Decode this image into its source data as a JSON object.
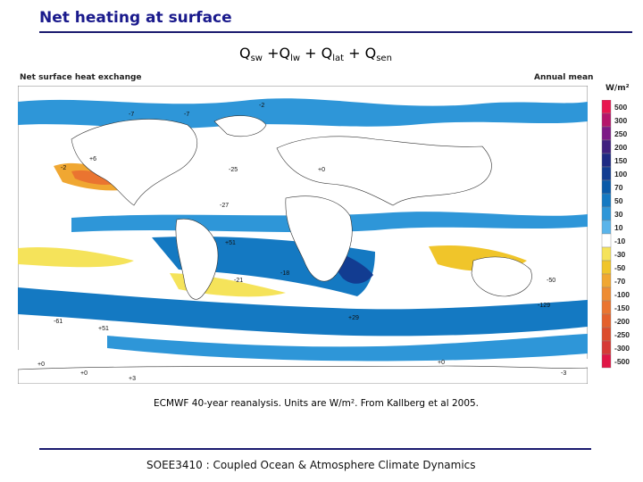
{
  "slide": {
    "title": "Net heating at surface",
    "equation": {
      "q1": "Q",
      "s1": "sw",
      "op1": " +",
      "q2": "Q",
      "s2": "lw",
      "op2": " + ",
      "q3": "Q",
      "s3": "lat",
      "op3": " + ",
      "q4": "Q",
      "s4": "sen"
    },
    "caption": "ECMWF 40-year reanalysis. Units are W/m². From Kallberg et al 2005.",
    "footer": "SOEE3410 : Coupled Ocean & Atmosphere Climate Dynamics"
  },
  "map": {
    "heading_left": "Net surface heat exchange",
    "heading_right": "Annual mean",
    "legend_unit": "W/m²",
    "legend": [
      {
        "label": "500",
        "color": "#e8164f"
      },
      {
        "label": "300",
        "color": "#b5166b"
      },
      {
        "label": "250",
        "color": "#7d1a86"
      },
      {
        "label": "200",
        "color": "#40207f"
      },
      {
        "label": "150",
        "color": "#1e2a84"
      },
      {
        "label": "100",
        "color": "#123c91"
      },
      {
        "label": "70",
        "color": "#0a5aa8"
      },
      {
        "label": "50",
        "color": "#1479c2"
      },
      {
        "label": "30",
        "color": "#2e96d8"
      },
      {
        "label": "10",
        "color": "#5ab4ea"
      },
      {
        "label": "-10",
        "color": "#ffffff"
      },
      {
        "label": "-30",
        "color": "#f5e35a"
      },
      {
        "label": "-50",
        "color": "#f0c52a"
      },
      {
        "label": "-70",
        "color": "#f0a732"
      },
      {
        "label": "-100",
        "color": "#ee8c33"
      },
      {
        "label": "-150",
        "color": "#ea7430"
      },
      {
        "label": "-200",
        "color": "#e4602c"
      },
      {
        "label": "-250",
        "color": "#dc4c2c"
      },
      {
        "label": "-300",
        "color": "#d63a36"
      },
      {
        "label": "-500",
        "color": "#e01646"
      }
    ],
    "values": [
      "-7",
      "-7",
      "-2",
      "-2",
      "+6",
      "-25",
      "-27",
      "+0",
      "+51",
      "+29",
      "-21",
      "-18",
      "-50",
      "-129",
      "+0",
      "+0",
      "+3",
      "-61",
      "+51",
      "+0",
      "-3"
    ]
  }
}
